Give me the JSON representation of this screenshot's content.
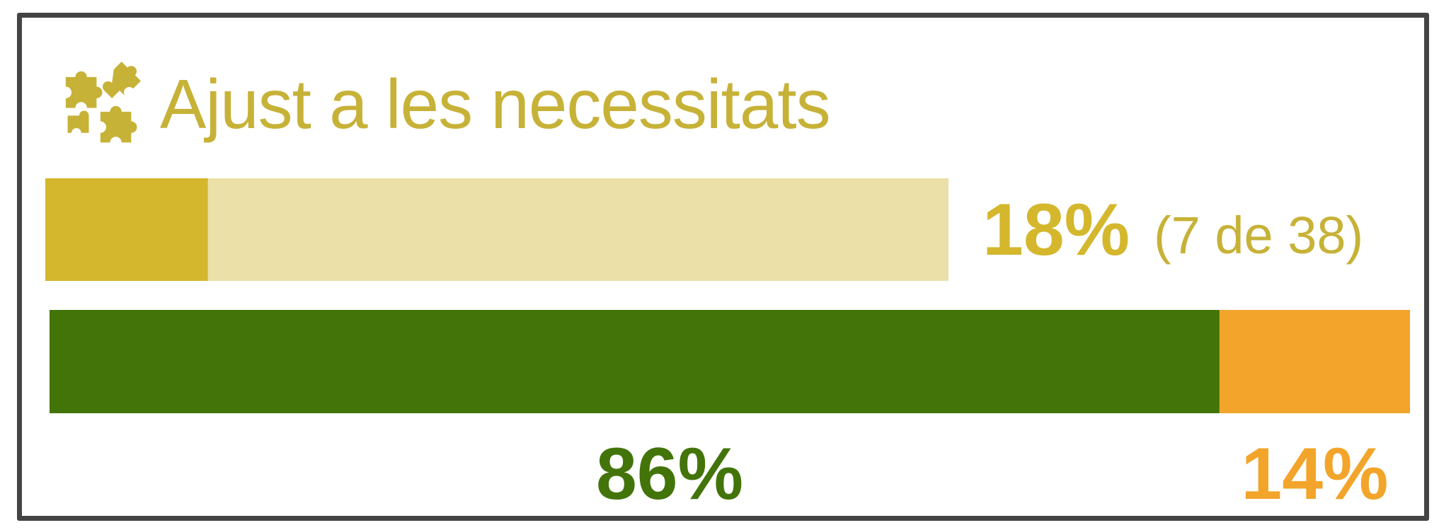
{
  "title": "Ajust a les necessitats",
  "title_icon": "puzzle-pieces-icon",
  "colors": {
    "frame": "#444444",
    "title": "#c7b238",
    "share_fill": "#d4b72c",
    "share_track": "#ebe0a8",
    "positive": "#43740a",
    "negative": "#f2a52a"
  },
  "chart_data": [
    {
      "type": "bar",
      "orientation": "horizontal",
      "title": "Ajust a les necessitats",
      "value_percent": 18,
      "count": 7,
      "total": 38,
      "value_label": "18%",
      "count_label": "(7 de 38)"
    },
    {
      "type": "bar",
      "orientation": "horizontal",
      "stacked": true,
      "series": [
        {
          "value_percent": 86,
          "label": "86%"
        },
        {
          "value_percent": 14,
          "label": "14%"
        }
      ]
    }
  ]
}
